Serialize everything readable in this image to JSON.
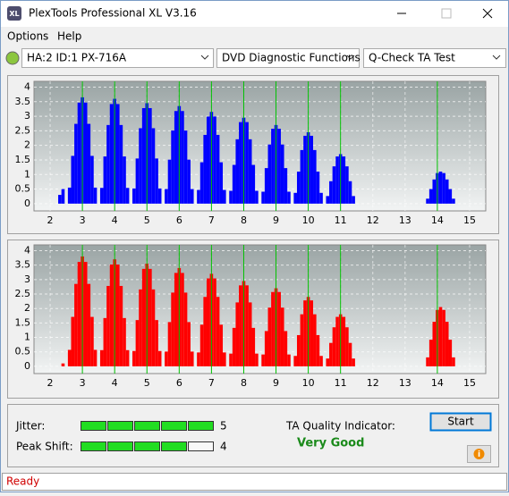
{
  "window": {
    "title": "PlexTools Professional XL V3.16",
    "menu": [
      "Options",
      "Help"
    ],
    "drive": "HA:2 ID:1  PX-716A",
    "function": "DVD Diagnostic Functions",
    "test": "Q-Check TA Test"
  },
  "chart_data": [
    {
      "type": "bar",
      "color": "#0000ff",
      "marker_color": "#00c000",
      "xlim": [
        1.5,
        15.5
      ],
      "ylim": [
        -0.25,
        4.2
      ],
      "xticks": [
        2,
        3,
        4,
        5,
        6,
        7,
        8,
        9,
        10,
        11,
        12,
        13,
        14,
        15
      ],
      "yticks": [
        0,
        0.5,
        1,
        1.5,
        2,
        2.5,
        3,
        3.5,
        4
      ],
      "markers": [
        3,
        4,
        5,
        6,
        7,
        8,
        9,
        10,
        11,
        14
      ],
      "x": [
        2.3,
        2.4,
        2.5,
        2.6,
        2.7,
        2.8,
        2.9,
        3.0,
        3.1,
        3.2,
        3.3,
        3.4,
        3.5,
        3.6,
        3.7,
        3.8,
        3.9,
        4.0,
        4.1,
        4.2,
        4.3,
        4.4,
        4.5,
        4.6,
        4.7,
        4.8,
        4.9,
        5.0,
        5.1,
        5.2,
        5.3,
        5.4,
        5.5,
        5.6,
        5.7,
        5.8,
        5.9,
        6.0,
        6.1,
        6.2,
        6.3,
        6.4,
        6.5,
        6.6,
        6.7,
        6.8,
        6.9,
        7.0,
        7.1,
        7.2,
        7.3,
        7.4,
        7.5,
        7.6,
        7.7,
        7.8,
        7.9,
        8.0,
        8.1,
        8.2,
        8.3,
        8.4,
        8.5,
        8.6,
        8.7,
        8.8,
        8.9,
        9.0,
        9.1,
        9.2,
        9.3,
        9.4,
        9.5,
        9.6,
        9.7,
        9.8,
        9.9,
        10.0,
        10.1,
        10.2,
        10.3,
        10.4,
        10.5,
        10.6,
        10.7,
        10.8,
        10.9,
        11.0,
        11.1,
        11.2,
        11.3,
        11.4,
        13.6,
        13.7,
        13.8,
        13.9,
        14.0,
        14.1,
        14.2,
        14.3,
        14.4,
        14.5
      ],
      "values": [
        0.3,
        0.5,
        0,
        0.55,
        1.64,
        2.74,
        3.47,
        3.65,
        3.47,
        2.74,
        1.64,
        0.55,
        0,
        0.54,
        1.62,
        2.7,
        3.42,
        3.6,
        3.42,
        2.7,
        1.62,
        0.54,
        0,
        0.52,
        1.55,
        2.59,
        3.28,
        3.45,
        3.28,
        2.59,
        1.55,
        0.52,
        0,
        0.5,
        1.51,
        2.51,
        3.18,
        3.35,
        3.18,
        2.51,
        1.51,
        0.5,
        0,
        0.47,
        1.42,
        2.36,
        2.99,
        3.15,
        2.99,
        2.36,
        1.42,
        0.47,
        0,
        0.44,
        1.33,
        2.21,
        2.8,
        2.95,
        2.8,
        2.21,
        1.33,
        0.44,
        0,
        0.41,
        1.22,
        2.03,
        2.57,
        2.7,
        2.57,
        2.03,
        1.22,
        0.41,
        0,
        0.37,
        1.1,
        1.84,
        2.33,
        2.45,
        2.33,
        1.84,
        1.1,
        0.37,
        0,
        0.26,
        0.77,
        1.28,
        1.62,
        1.7,
        1.62,
        1.28,
        0.77,
        0.26,
        0,
        0.17,
        0.5,
        0.83,
        1.05,
        1.1,
        1.05,
        0.83,
        0.5,
        0.17
      ]
    },
    {
      "type": "bar",
      "color": "#ff0000",
      "marker_color": "#00c000",
      "xlim": [
        1.5,
        15.5
      ],
      "ylim": [
        -0.25,
        4.2
      ],
      "xticks": [
        2,
        3,
        4,
        5,
        6,
        7,
        8,
        9,
        10,
        11,
        12,
        13,
        14,
        15
      ],
      "yticks": [
        0,
        0.5,
        1,
        1.5,
        2,
        2.5,
        3,
        3.5,
        4
      ],
      "markers": [
        3,
        4,
        5,
        6,
        7,
        8,
        9,
        10,
        11,
        14
      ],
      "x": [
        2.3,
        2.4,
        2.5,
        2.6,
        2.7,
        2.8,
        2.9,
        3.0,
        3.1,
        3.2,
        3.3,
        3.4,
        3.5,
        3.6,
        3.7,
        3.8,
        3.9,
        4.0,
        4.1,
        4.2,
        4.3,
        4.4,
        4.5,
        4.6,
        4.7,
        4.8,
        4.9,
        5.0,
        5.1,
        5.2,
        5.3,
        5.4,
        5.5,
        5.6,
        5.7,
        5.8,
        5.9,
        6.0,
        6.1,
        6.2,
        6.3,
        6.4,
        6.5,
        6.6,
        6.7,
        6.8,
        6.9,
        7.0,
        7.1,
        7.2,
        7.3,
        7.4,
        7.5,
        7.6,
        7.7,
        7.8,
        7.9,
        8.0,
        8.1,
        8.2,
        8.3,
        8.4,
        8.5,
        8.6,
        8.7,
        8.8,
        8.9,
        9.0,
        9.1,
        9.2,
        9.3,
        9.4,
        9.5,
        9.6,
        9.7,
        9.8,
        9.9,
        10.0,
        10.1,
        10.2,
        10.3,
        10.4,
        10.5,
        10.6,
        10.7,
        10.8,
        10.9,
        11.0,
        11.1,
        11.2,
        11.3,
        11.4,
        13.6,
        13.7,
        13.8,
        13.9,
        14.0,
        14.1,
        14.2,
        14.3,
        14.4,
        14.5
      ],
      "values": [
        0,
        0.1,
        0,
        0.57,
        1.71,
        2.85,
        3.61,
        3.8,
        3.61,
        2.85,
        1.71,
        0.57,
        0,
        0.56,
        1.67,
        2.78,
        3.52,
        3.7,
        3.52,
        2.78,
        1.67,
        0.56,
        0,
        0.53,
        1.6,
        2.66,
        3.37,
        3.55,
        3.37,
        2.66,
        1.6,
        0.53,
        0,
        0.51,
        1.53,
        2.55,
        3.23,
        3.4,
        3.23,
        2.55,
        1.53,
        0.51,
        0,
        0.48,
        1.44,
        2.4,
        3.04,
        3.2,
        3.04,
        2.4,
        1.44,
        0.48,
        0,
        0.44,
        1.33,
        2.21,
        2.8,
        2.95,
        2.8,
        2.21,
        1.33,
        0.44,
        0,
        0.41,
        1.22,
        2.03,
        2.57,
        2.7,
        2.57,
        2.03,
        1.22,
        0.41,
        0,
        0.36,
        1.08,
        1.8,
        2.28,
        2.4,
        2.28,
        1.8,
        1.08,
        0.36,
        0,
        0.27,
        0.81,
        1.35,
        1.71,
        1.8,
        1.71,
        1.35,
        0.81,
        0.27,
        0,
        0.31,
        0.92,
        1.54,
        1.95,
        2.05,
        1.95,
        1.54,
        0.92,
        0.31
      ]
    }
  ],
  "results": {
    "jitter_label": "Jitter:",
    "jitter": 5,
    "peak_shift_label": "Peak Shift:",
    "peak_shift": 4,
    "quality_label": "TA Quality Indicator:",
    "quality": "Very Good",
    "start": "Start"
  },
  "status": "Ready"
}
